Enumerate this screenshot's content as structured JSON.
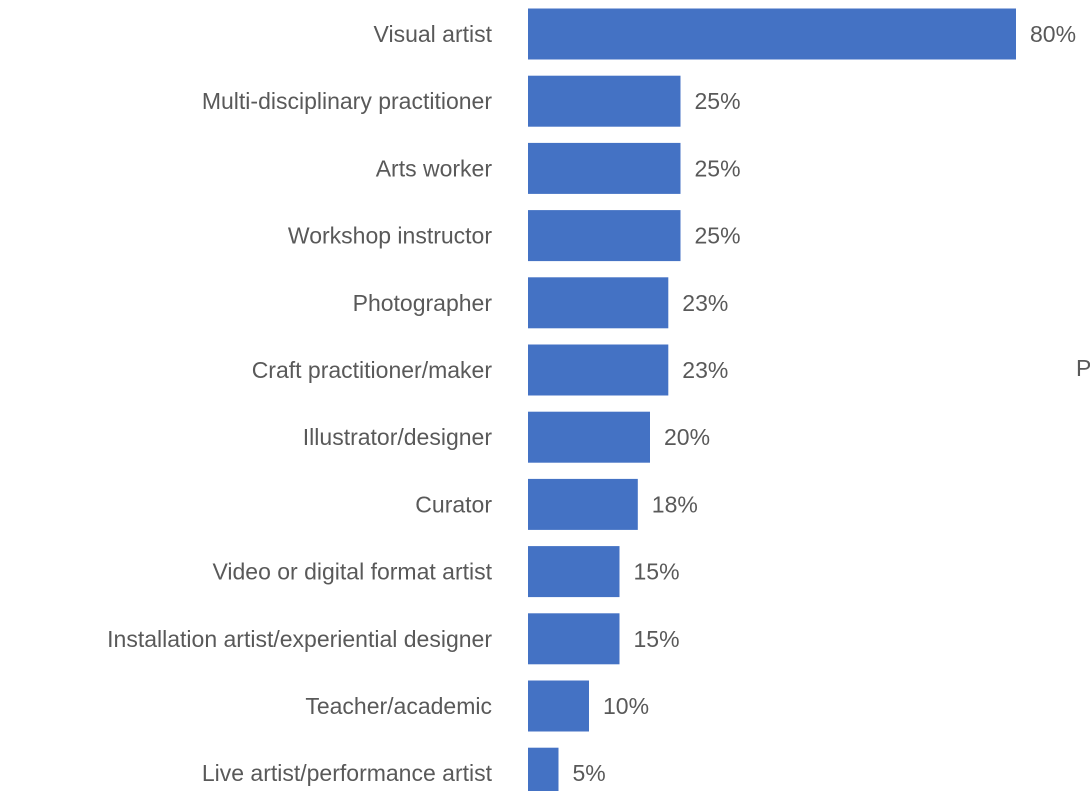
{
  "chart_data": {
    "type": "bar",
    "orientation": "horizontal",
    "categories": [
      "Visual artist",
      "Multi-disciplinary practitioner",
      "Arts worker",
      "Workshop instructor",
      "Photographer",
      "Craft practitioner/maker",
      "Illustrator/designer",
      "Curator",
      "Video or digital format artist",
      "Installation artist/experiential designer",
      "Teacher/academic",
      "Live artist/performance artist"
    ],
    "values": [
      80,
      25,
      25,
      25,
      23,
      23,
      20,
      18,
      15,
      15,
      10,
      5
    ],
    "value_labels": [
      "80%",
      "25%",
      "25%",
      "25%",
      "23%",
      "23%",
      "20%",
      "18%",
      "15%",
      "15%",
      "10%",
      "5%"
    ],
    "unit": "%",
    "grid": false,
    "bar_color": "#4472c4",
    "text_color": "#595959",
    "clipped_text": "P"
  }
}
